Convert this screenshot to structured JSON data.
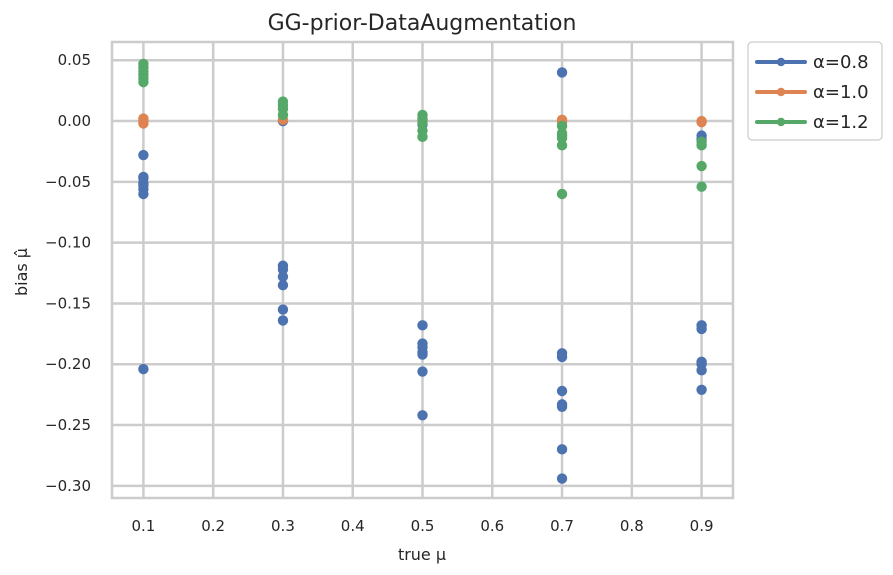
{
  "chart_data": {
    "type": "scatter",
    "title": "GG-prior-DataAugmentation",
    "xlabel": "true μ",
    "ylabel": "bias μ̂",
    "xlim": [
      0.055,
      0.945
    ],
    "ylim": [
      -0.31,
      0.065
    ],
    "xticks": [
      0.1,
      0.2,
      0.3,
      0.4,
      0.5,
      0.6,
      0.7,
      0.8,
      0.9
    ],
    "xtick_labels": [
      "0.1",
      "0.2",
      "0.3",
      "0.4",
      "0.5",
      "0.6",
      "0.7",
      "0.8",
      "0.9"
    ],
    "yticks": [
      0.05,
      0.0,
      -0.05,
      -0.1,
      -0.15,
      -0.2,
      -0.25,
      -0.3
    ],
    "ytick_labels": [
      "0.05",
      "0.00",
      "−0.05",
      "−0.10",
      "−0.15",
      "−0.20",
      "−0.25",
      "−0.30"
    ],
    "grid": true,
    "legend_placement": "outside-top-right",
    "series": [
      {
        "name": "α=0.8",
        "color": "#4c72b0",
        "points": [
          [
            0.1,
            -0.028
          ],
          [
            0.1,
            -0.046
          ],
          [
            0.1,
            -0.047
          ],
          [
            0.1,
            -0.051
          ],
          [
            0.1,
            -0.053
          ],
          [
            0.1,
            -0.056
          ],
          [
            0.1,
            -0.06
          ],
          [
            0.1,
            -0.204
          ],
          [
            0.3,
            0.0
          ],
          [
            0.3,
            -0.119
          ],
          [
            0.3,
            -0.122
          ],
          [
            0.3,
            -0.128
          ],
          [
            0.3,
            -0.135
          ],
          [
            0.3,
            -0.155
          ],
          [
            0.3,
            -0.164
          ],
          [
            0.5,
            -0.003
          ],
          [
            0.5,
            -0.168
          ],
          [
            0.5,
            -0.183
          ],
          [
            0.5,
            -0.186
          ],
          [
            0.5,
            -0.19
          ],
          [
            0.5,
            -0.192
          ],
          [
            0.5,
            -0.206
          ],
          [
            0.5,
            -0.242
          ],
          [
            0.7,
            0.04
          ],
          [
            0.7,
            -0.191
          ],
          [
            0.7,
            -0.194
          ],
          [
            0.7,
            -0.222
          ],
          [
            0.7,
            -0.233
          ],
          [
            0.7,
            -0.235
          ],
          [
            0.7,
            -0.27
          ],
          [
            0.7,
            -0.294
          ],
          [
            0.9,
            -0.012
          ],
          [
            0.9,
            -0.015
          ],
          [
            0.9,
            -0.168
          ],
          [
            0.9,
            -0.171
          ],
          [
            0.9,
            -0.198
          ],
          [
            0.9,
            -0.2
          ],
          [
            0.9,
            -0.205
          ],
          [
            0.9,
            -0.221
          ]
        ]
      },
      {
        "name": "α=1.0",
        "color": "#dd8452",
        "points": [
          [
            0.1,
            0.002
          ],
          [
            0.1,
            0.0
          ],
          [
            0.1,
            -0.002
          ],
          [
            0.3,
            0.001
          ],
          [
            0.5,
            0.001
          ],
          [
            0.7,
            0.001
          ],
          [
            0.7,
            -0.001
          ],
          [
            0.9,
            0.0
          ],
          [
            0.9,
            -0.001
          ]
        ]
      },
      {
        "name": "α=1.2",
        "color": "#55a868",
        "points": [
          [
            0.1,
            0.047
          ],
          [
            0.1,
            0.044
          ],
          [
            0.1,
            0.041
          ],
          [
            0.1,
            0.038
          ],
          [
            0.1,
            0.035
          ],
          [
            0.1,
            0.032
          ],
          [
            0.3,
            0.016
          ],
          [
            0.3,
            0.013
          ],
          [
            0.3,
            0.01
          ],
          [
            0.3,
            0.005
          ],
          [
            0.5,
            0.005
          ],
          [
            0.5,
            0.002
          ],
          [
            0.5,
            -0.002
          ],
          [
            0.5,
            -0.008
          ],
          [
            0.5,
            -0.013
          ],
          [
            0.7,
            -0.004
          ],
          [
            0.7,
            -0.01
          ],
          [
            0.7,
            -0.012
          ],
          [
            0.7,
            -0.014
          ],
          [
            0.7,
            -0.02
          ],
          [
            0.7,
            -0.06
          ],
          [
            0.9,
            -0.017
          ],
          [
            0.9,
            -0.02
          ],
          [
            0.9,
            -0.037
          ],
          [
            0.9,
            -0.054
          ]
        ]
      }
    ]
  }
}
